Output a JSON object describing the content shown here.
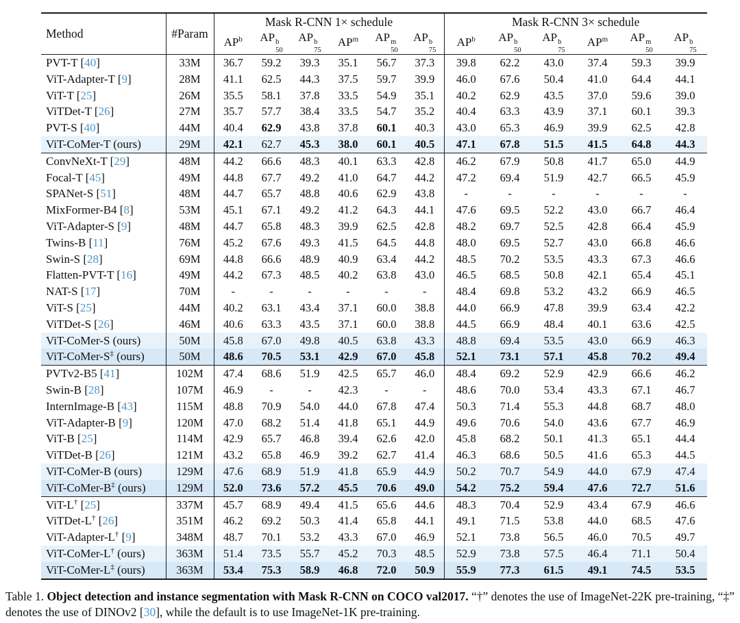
{
  "colors": {
    "citation": "#4e96c9",
    "highlight_light": "#e8f2fb",
    "highlight_dark": "#d7e8f7"
  },
  "table": {
    "ours_suffix": "(ours)",
    "header": {
      "method": "Method",
      "param": "#Param",
      "schedule_1x": "Mask R-CNN 1× schedule",
      "schedule_3x": "Mask R-CNN 3× schedule",
      "metrics": [
        {
          "base": "AP",
          "sup": "b",
          "sub": ""
        },
        {
          "base": "AP",
          "sup": "b",
          "sub": "50"
        },
        {
          "base": "AP",
          "sup": "b",
          "sub": "75"
        },
        {
          "base": "AP",
          "sup": "m",
          "sub": ""
        },
        {
          "base": "AP",
          "sup": "m",
          "sub": "50"
        },
        {
          "base": "AP",
          "sup": "b",
          "sub": "75"
        }
      ]
    },
    "groups": [
      {
        "rows": [
          {
            "method": "PVT-T",
            "cite": "40",
            "param": "33M",
            "v1": [
              "36.7",
              "59.2",
              "39.3",
              "35.1",
              "56.7",
              "37.3"
            ],
            "v3": [
              "39.8",
              "62.2",
              "43.0",
              "37.4",
              "59.3",
              "39.9"
            ]
          },
          {
            "method": "ViT-Adapter-T",
            "cite": "9",
            "param": "28M",
            "v1": [
              "41.1",
              "62.5",
              "44.3",
              "37.5",
              "59.7",
              "39.9"
            ],
            "v3": [
              "46.0",
              "67.6",
              "50.4",
              "41.0",
              "64.4",
              "44.1"
            ]
          },
          {
            "method": "ViT-T",
            "cite": "25",
            "param": "26M",
            "v1": [
              "35.5",
              "58.1",
              "37.8",
              "33.5",
              "54.9",
              "35.1"
            ],
            "v3": [
              "40.2",
              "62.9",
              "43.5",
              "37.0",
              "59.6",
              "39.0"
            ]
          },
          {
            "method": "ViTDet-T",
            "cite": "26",
            "param": "27M",
            "v1": [
              "35.7",
              "57.7",
              "38.4",
              "33.5",
              "54.7",
              "35.2"
            ],
            "v3": [
              "40.4",
              "63.3",
              "43.9",
              "37.1",
              "60.1",
              "39.3"
            ]
          },
          {
            "method": "PVT-S",
            "cite": "40",
            "param": "44M",
            "v1": [
              "40.4",
              "62.9",
              "43.8",
              "37.8",
              "60.1",
              "40.3"
            ],
            "bold1": [
              1,
              4
            ],
            "v3": [
              "43.0",
              "65.3",
              "46.9",
              "39.9",
              "62.5",
              "42.8"
            ]
          },
          {
            "method": "ViT-CoMer-T",
            "ours": true,
            "highlight": "light",
            "param": "29M",
            "v1": [
              "42.1",
              "62.7",
              "45.3",
              "38.0",
              "60.1",
              "40.5"
            ],
            "bold1": [
              0,
              2,
              3,
              4,
              5
            ],
            "v3": [
              "47.1",
              "67.8",
              "51.5",
              "41.5",
              "64.8",
              "44.3"
            ],
            "bold3": [
              0,
              1,
              2,
              3,
              4,
              5
            ]
          }
        ]
      },
      {
        "rows": [
          {
            "method": "ConvNeXt-T",
            "cite": "29",
            "param": "48M",
            "v1": [
              "44.2",
              "66.6",
              "48.3",
              "40.1",
              "63.3",
              "42.8"
            ],
            "v3": [
              "46.2",
              "67.9",
              "50.8",
              "41.7",
              "65.0",
              "44.9"
            ]
          },
          {
            "method": "Focal-T",
            "cite": "45",
            "param": "49M",
            "v1": [
              "44.8",
              "67.7",
              "49.2",
              "41.0",
              "64.7",
              "44.2"
            ],
            "v3": [
              "47.2",
              "69.4",
              "51.9",
              "42.7",
              "66.5",
              "45.9"
            ]
          },
          {
            "method": "SPANet-S",
            "cite": "51",
            "param": "48M",
            "v1": [
              "44.7",
              "65.7",
              "48.8",
              "40.6",
              "62.9",
              "43.8"
            ],
            "v3": [
              "-",
              "-",
              "-",
              "-",
              "-",
              "-"
            ]
          },
          {
            "method": "MixFormer-B4",
            "cite": "8",
            "param": "53M",
            "v1": [
              "45.1",
              "67.1",
              "49.2",
              "41.2",
              "64.3",
              "44.1"
            ],
            "v3": [
              "47.6",
              "69.5",
              "52.2",
              "43.0",
              "66.7",
              "46.4"
            ]
          },
          {
            "method": "ViT-Adapter-S",
            "cite": "9",
            "param": "48M",
            "v1": [
              "44.7",
              "65.8",
              "48.3",
              "39.9",
              "62.5",
              "42.8"
            ],
            "v3": [
              "48.2",
              "69.7",
              "52.5",
              "42.8",
              "66.4",
              "45.9"
            ]
          },
          {
            "method": "Twins-B",
            "cite": "11",
            "param": "76M",
            "v1": [
              "45.2",
              "67.6",
              "49.3",
              "41.5",
              "64.5",
              "44.8"
            ],
            "v3": [
              "48.0",
              "69.5",
              "52.7",
              "43.0",
              "66.8",
              "46.6"
            ]
          },
          {
            "method": "Swin-S",
            "cite": "28",
            "param": "69M",
            "v1": [
              "44.8",
              "66.6",
              "48.9",
              "40.9",
              "63.4",
              "44.2"
            ],
            "v3": [
              "48.5",
              "70.2",
              "53.5",
              "43.3",
              "67.3",
              "46.6"
            ]
          },
          {
            "method": "Flatten-PVT-T",
            "cite": "16",
            "param": "49M",
            "v1": [
              "44.2",
              "67.3",
              "48.5",
              "40.2",
              "63.8",
              "43.0"
            ],
            "v3": [
              "46.5",
              "68.5",
              "50.8",
              "42.1",
              "65.4",
              "45.1"
            ]
          },
          {
            "method": "NAT-S",
            "cite": "17",
            "param": "70M",
            "v1": [
              "-",
              "-",
              "-",
              "-",
              "-",
              "-"
            ],
            "v3": [
              "48.4",
              "69.8",
              "53.2",
              "43.2",
              "66.9",
              "46.5"
            ]
          },
          {
            "method": "ViT-S",
            "cite": "25",
            "param": "44M",
            "v1": [
              "40.2",
              "63.1",
              "43.4",
              "37.1",
              "60.0",
              "38.8"
            ],
            "v3": [
              "44.0",
              "66.9",
              "47.8",
              "39.9",
              "63.4",
              "42.2"
            ]
          },
          {
            "method": "ViTDet-S",
            "cite": "26",
            "param": "46M",
            "v1": [
              "40.6",
              "63.3",
              "43.5",
              "37.1",
              "60.0",
              "38.8"
            ],
            "v3": [
              "44.5",
              "66.9",
              "48.4",
              "40.1",
              "63.6",
              "42.5"
            ]
          },
          {
            "method": "ViT-CoMer-S",
            "ours": true,
            "highlight": "light",
            "param": "50M",
            "v1": [
              "45.8",
              "67.0",
              "49.8",
              "40.5",
              "63.8",
              "43.3"
            ],
            "v3": [
              "48.8",
              "69.4",
              "53.5",
              "43.0",
              "66.9",
              "46.3"
            ]
          },
          {
            "method": "ViT-CoMer-S",
            "sup": "‡",
            "ours": true,
            "highlight": "dark",
            "param": "50M",
            "v1": [
              "48.6",
              "70.5",
              "53.1",
              "42.9",
              "67.0",
              "45.8"
            ],
            "bold1": [
              0,
              1,
              2,
              3,
              4,
              5
            ],
            "v3": [
              "52.1",
              "73.1",
              "57.1",
              "45.8",
              "70.2",
              "49.4"
            ],
            "bold3": [
              0,
              1,
              2,
              3,
              4,
              5
            ]
          }
        ]
      },
      {
        "rows": [
          {
            "method": "PVTv2-B5",
            "cite": "41",
            "param": "102M",
            "v1": [
              "47.4",
              "68.6",
              "51.9",
              "42.5",
              "65.7",
              "46.0"
            ],
            "v3": [
              "48.4",
              "69.2",
              "52.9",
              "42.9",
              "66.6",
              "46.2"
            ]
          },
          {
            "method": "Swin-B",
            "cite": "28",
            "param": "107M",
            "v1": [
              "46.9",
              "-",
              "-",
              "42.3",
              "-",
              "-"
            ],
            "v3": [
              "48.6",
              "70.0",
              "53.4",
              "43.3",
              "67.1",
              "46.7"
            ]
          },
          {
            "method": "InternImage-B",
            "cite": "43",
            "param": "115M",
            "v1": [
              "48.8",
              "70.9",
              "54.0",
              "44.0",
              "67.8",
              "47.4"
            ],
            "v3": [
              "50.3",
              "71.4",
              "55.3",
              "44.8",
              "68.7",
              "48.0"
            ]
          },
          {
            "method": "ViT-Adapter-B",
            "cite": "9",
            "param": "120M",
            "v1": [
              "47.0",
              "68.2",
              "51.4",
              "41.8",
              "65.1",
              "44.9"
            ],
            "v3": [
              "49.6",
              "70.6",
              "54.0",
              "43.6",
              "67.7",
              "46.9"
            ]
          },
          {
            "method": "ViT-B",
            "cite": "25",
            "param": "114M",
            "v1": [
              "42.9",
              "65.7",
              "46.8",
              "39.4",
              "62.6",
              "42.0"
            ],
            "v3": [
              "45.8",
              "68.2",
              "50.1",
              "41.3",
              "65.1",
              "44.4"
            ]
          },
          {
            "method": "ViTDet-B",
            "cite": "26",
            "param": "121M",
            "v1": [
              "43.2",
              "65.8",
              "46.9",
              "39.2",
              "62.7",
              "41.4"
            ],
            "v3": [
              "46.3",
              "68.6",
              "50.5",
              "41.6",
              "65.3",
              "44.5"
            ]
          },
          {
            "method": "ViT-CoMer-B",
            "ours": true,
            "highlight": "light",
            "param": "129M",
            "v1": [
              "47.6",
              "68.9",
              "51.9",
              "41.8",
              "65.9",
              "44.9"
            ],
            "v3": [
              "50.2",
              "70.7",
              "54.9",
              "44.0",
              "67.9",
              "47.4"
            ]
          },
          {
            "method": "ViT-CoMer-B",
            "sup": "‡",
            "ours": true,
            "highlight": "dark",
            "param": "129M",
            "v1": [
              "52.0",
              "73.6",
              "57.2",
              "45.5",
              "70.6",
              "49.0"
            ],
            "bold1": [
              0,
              1,
              2,
              3,
              4,
              5
            ],
            "v3": [
              "54.2",
              "75.2",
              "59.4",
              "47.6",
              "72.7",
              "51.6"
            ],
            "bold3": [
              0,
              1,
              2,
              3,
              4,
              5
            ]
          }
        ]
      },
      {
        "rows": [
          {
            "method": "ViT-L",
            "sup": "†",
            "cite": "25",
            "param": "337M",
            "v1": [
              "45.7",
              "68.9",
              "49.4",
              "41.5",
              "65.6",
              "44.6"
            ],
            "v3": [
              "48.3",
              "70.4",
              "52.9",
              "43.4",
              "67.9",
              "46.6"
            ]
          },
          {
            "method": "ViTDet-L",
            "sup": "†",
            "cite": "26",
            "param": "351M",
            "v1": [
              "46.2",
              "69.2",
              "50.3",
              "41.4",
              "65.8",
              "44.1"
            ],
            "v3": [
              "49.1",
              "71.5",
              "53.8",
              "44.0",
              "68.5",
              "47.6"
            ]
          },
          {
            "method": "ViT-Adapter-L",
            "sup": "†",
            "cite": "9",
            "param": "348M",
            "v1": [
              "48.7",
              "70.1",
              "53.2",
              "43.3",
              "67.0",
              "46.9"
            ],
            "v3": [
              "52.1",
              "73.8",
              "56.5",
              "46.0",
              "70.5",
              "49.7"
            ]
          },
          {
            "method": "ViT-CoMer-L",
            "sup": "†",
            "ours": true,
            "highlight": "light",
            "param": "363M",
            "v1": [
              "51.4",
              "73.5",
              "55.7",
              "45.2",
              "70.3",
              "48.5"
            ],
            "v3": [
              "52.9",
              "73.8",
              "57.5",
              "46.4",
              "71.1",
              "50.4"
            ]
          },
          {
            "method": "ViT-CoMer-L",
            "sup": "‡",
            "ours": true,
            "highlight": "dark",
            "param": "363M",
            "v1": [
              "53.4",
              "75.3",
              "58.9",
              "46.8",
              "72.0",
              "50.9"
            ],
            "bold1": [
              0,
              1,
              2,
              3,
              4,
              5
            ],
            "v3": [
              "55.9",
              "77.3",
              "61.5",
              "49.1",
              "74.5",
              "53.5"
            ],
            "bold3": [
              0,
              1,
              2,
              3,
              4,
              5
            ]
          }
        ]
      }
    ]
  },
  "caption": {
    "label": "Table 1. ",
    "bold": "Object detection and instance segmentation with Mask R-CNN on COCO val2017.",
    "mid": " “†” denotes the use of ImageNet-22K pre-training, “‡” denotes the use of DINOv2 [",
    "cite": "30",
    "tail": "], while the default is to use ImageNet-1K pre-training."
  }
}
